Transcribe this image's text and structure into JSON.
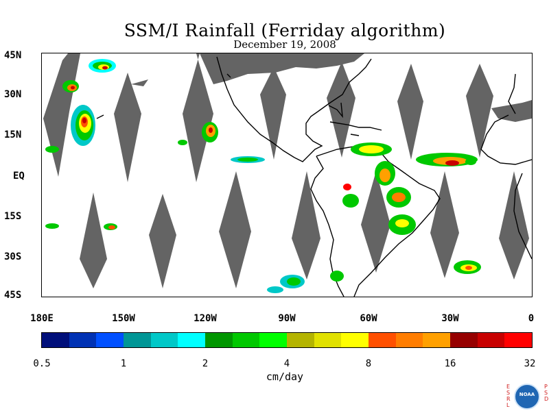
{
  "title": "SSM/I Rainfall (Ferriday algorithm)",
  "subtitle": "December 19, 2008",
  "lat_labels": [
    "45N",
    "30N",
    "15N",
    "EQ",
    "15S",
    "30S",
    "45S"
  ],
  "lon_labels": [
    "180E",
    "150W",
    "120W",
    "90W",
    "60W",
    "30W",
    "0"
  ],
  "colorbar": {
    "colors": [
      "#000f7a",
      "#0032b4",
      "#0050ff",
      "#009696",
      "#00c8c8",
      "#00ffff",
      "#009600",
      "#00c800",
      "#00ff00",
      "#b4b400",
      "#e1e100",
      "#ffff00",
      "#ff5000",
      "#ff7d00",
      "#ffa000",
      "#960000",
      "#c80000",
      "#ff0000"
    ],
    "ticks": [
      "0.5",
      "1",
      "2",
      "4",
      "8",
      "16",
      "32"
    ]
  },
  "units": "cm/day",
  "logo": {
    "left_letters": [
      "E",
      "S",
      "R",
      "L"
    ],
    "right_letters": [
      "P",
      "S",
      "D"
    ],
    "emblem_text": "NOAA"
  },
  "map": {
    "extent_lon": [
      -180,
      0
    ],
    "extent_lat": [
      -45,
      45
    ],
    "no_data_color": "#646464",
    "coast_color": "#000000"
  }
}
